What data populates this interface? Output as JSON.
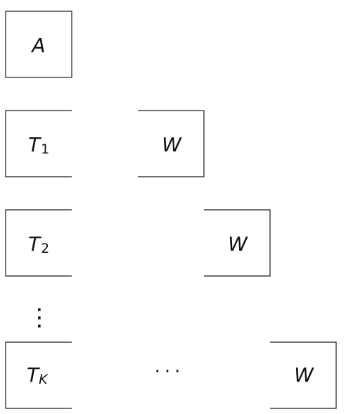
{
  "diagram": {
    "box_a": {
      "label": "A"
    },
    "rows": [
      {
        "t_label": "T",
        "t_sub": "1",
        "w_label": "W"
      },
      {
        "t_label": "T",
        "t_sub": "2",
        "w_label": "W"
      },
      {
        "t_label": "T",
        "t_sub": "K",
        "w_label": "W",
        "between": "···"
      }
    ],
    "vertical_ellipsis": "⋮"
  }
}
